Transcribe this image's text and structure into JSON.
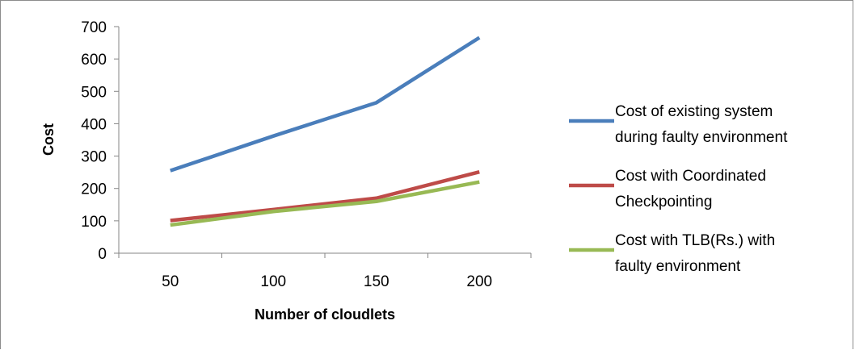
{
  "chart_data": {
    "type": "line",
    "title": "",
    "xlabel": "Number of cloudlets",
    "ylabel": "Cost",
    "categories": [
      "50",
      "100",
      "150",
      "200"
    ],
    "ylim": [
      0,
      700
    ],
    "yticks": [
      0,
      100,
      200,
      300,
      400,
      500,
      600,
      700
    ],
    "grid": false,
    "legend_position": "right",
    "series": [
      {
        "name_lines": [
          "Cost of existing system",
          "during faulty environment"
        ],
        "values": [
          255,
          362,
          465,
          666
        ],
        "color": "#4a7ebb"
      },
      {
        "name_lines": [
          "Cost with Coordinated",
          "Checkpointing"
        ],
        "values": [
          101,
          135,
          170,
          251
        ],
        "color": "#be4b48"
      },
      {
        "name_lines": [
          "Cost with TLB(Rs.) with",
          "faulty environment"
        ],
        "values": [
          87,
          129,
          160,
          220
        ],
        "color": "#98b954"
      }
    ]
  }
}
